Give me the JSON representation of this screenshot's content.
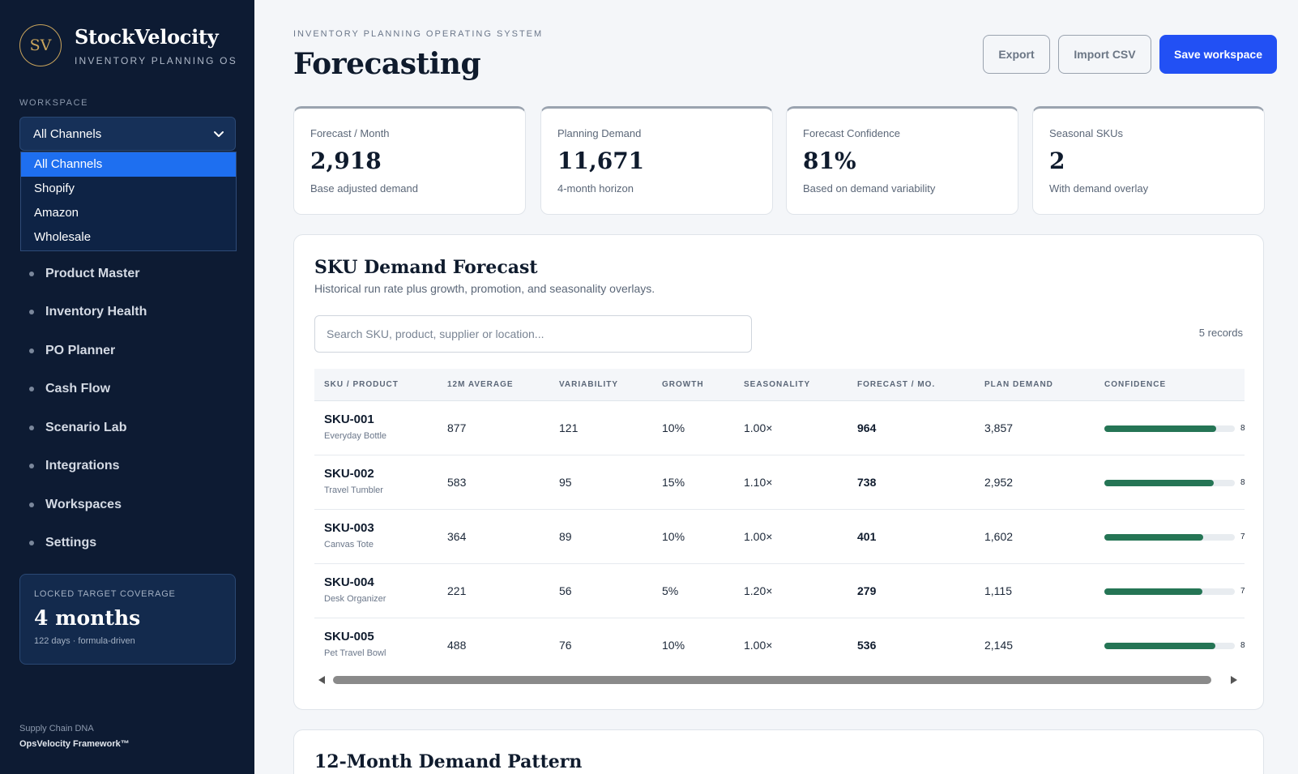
{
  "brand": {
    "logo": "SV",
    "name": "StockVelocity",
    "subtitle": "INVENTORY PLANNING OS"
  },
  "workspace": {
    "label": "WORKSPACE",
    "selected": "All Channels",
    "options": [
      "All Channels",
      "Shopify",
      "Amazon",
      "Wholesale"
    ]
  },
  "nav": [
    "Product Master",
    "Inventory Health",
    "PO Planner",
    "Cash Flow",
    "Scenario Lab",
    "Integrations",
    "Workspaces",
    "Settings"
  ],
  "locked": {
    "label": "LOCKED TARGET COVERAGE",
    "value": "4 months",
    "sub": "122 days · formula-driven"
  },
  "footer": {
    "line1": "Supply Chain DNA",
    "line2": "OpsVelocity Framework™"
  },
  "header": {
    "eyebrow": "INVENTORY PLANNING OPERATING SYSTEM",
    "title": "Forecasting",
    "export_label": "Export",
    "import_label": "Import CSV",
    "save_label": "Save workspace"
  },
  "kpis": [
    {
      "label": "Forecast / Month",
      "value": "2,918",
      "sub": "Base adjusted demand"
    },
    {
      "label": "Planning Demand",
      "value": "11,671",
      "sub": "4-month horizon"
    },
    {
      "label": "Forecast Confidence",
      "value": "81%",
      "sub": "Based on demand variability"
    },
    {
      "label": "Seasonal SKUs",
      "value": "2",
      "sub": "With demand overlay"
    }
  ],
  "forecast": {
    "title": "SKU Demand Forecast",
    "subtitle": "Historical run rate plus growth, promotion, and seasonality overlays.",
    "search_placeholder": "Search SKU, product, supplier or location...",
    "records": "5 records",
    "columns": [
      "SKU / PRODUCT",
      "12M AVERAGE",
      "VARIABILITY",
      "GROWTH",
      "SEASONALITY",
      "FORECAST / MO.",
      "PLAN DEMAND",
      "CONFIDENCE"
    ],
    "rows": [
      {
        "sku": "SKU-001",
        "name": "Everyday Bottle",
        "avg": "877",
        "var": "121",
        "growth": "10%",
        "season": "1.00×",
        "forecast": "964",
        "plan": "3,857",
        "confidence": 86,
        "conf_label": "8"
      },
      {
        "sku": "SKU-002",
        "name": "Travel Tumbler",
        "avg": "583",
        "var": "95",
        "growth": "15%",
        "season": "1.10×",
        "forecast": "738",
        "plan": "2,952",
        "confidence": 84,
        "conf_label": "8"
      },
      {
        "sku": "SKU-003",
        "name": "Canvas Tote",
        "avg": "364",
        "var": "89",
        "growth": "10%",
        "season": "1.00×",
        "forecast": "401",
        "plan": "1,602",
        "confidence": 76,
        "conf_label": "7"
      },
      {
        "sku": "SKU-004",
        "name": "Desk Organizer",
        "avg": "221",
        "var": "56",
        "growth": "5%",
        "season": "1.20×",
        "forecast": "279",
        "plan": "1,115",
        "confidence": 75,
        "conf_label": "7"
      },
      {
        "sku": "SKU-005",
        "name": "Pet Travel Bowl",
        "avg": "488",
        "var": "76",
        "growth": "10%",
        "season": "1.00×",
        "forecast": "536",
        "plan": "2,145",
        "confidence": 85,
        "conf_label": "8"
      }
    ]
  },
  "pattern": {
    "title": "12-Month Demand Pattern"
  },
  "colors": {
    "sidebar": "#0d1b33",
    "accent": "#2250f4",
    "confidence_bar": "#257555",
    "selected_option": "#1e6ff0"
  }
}
